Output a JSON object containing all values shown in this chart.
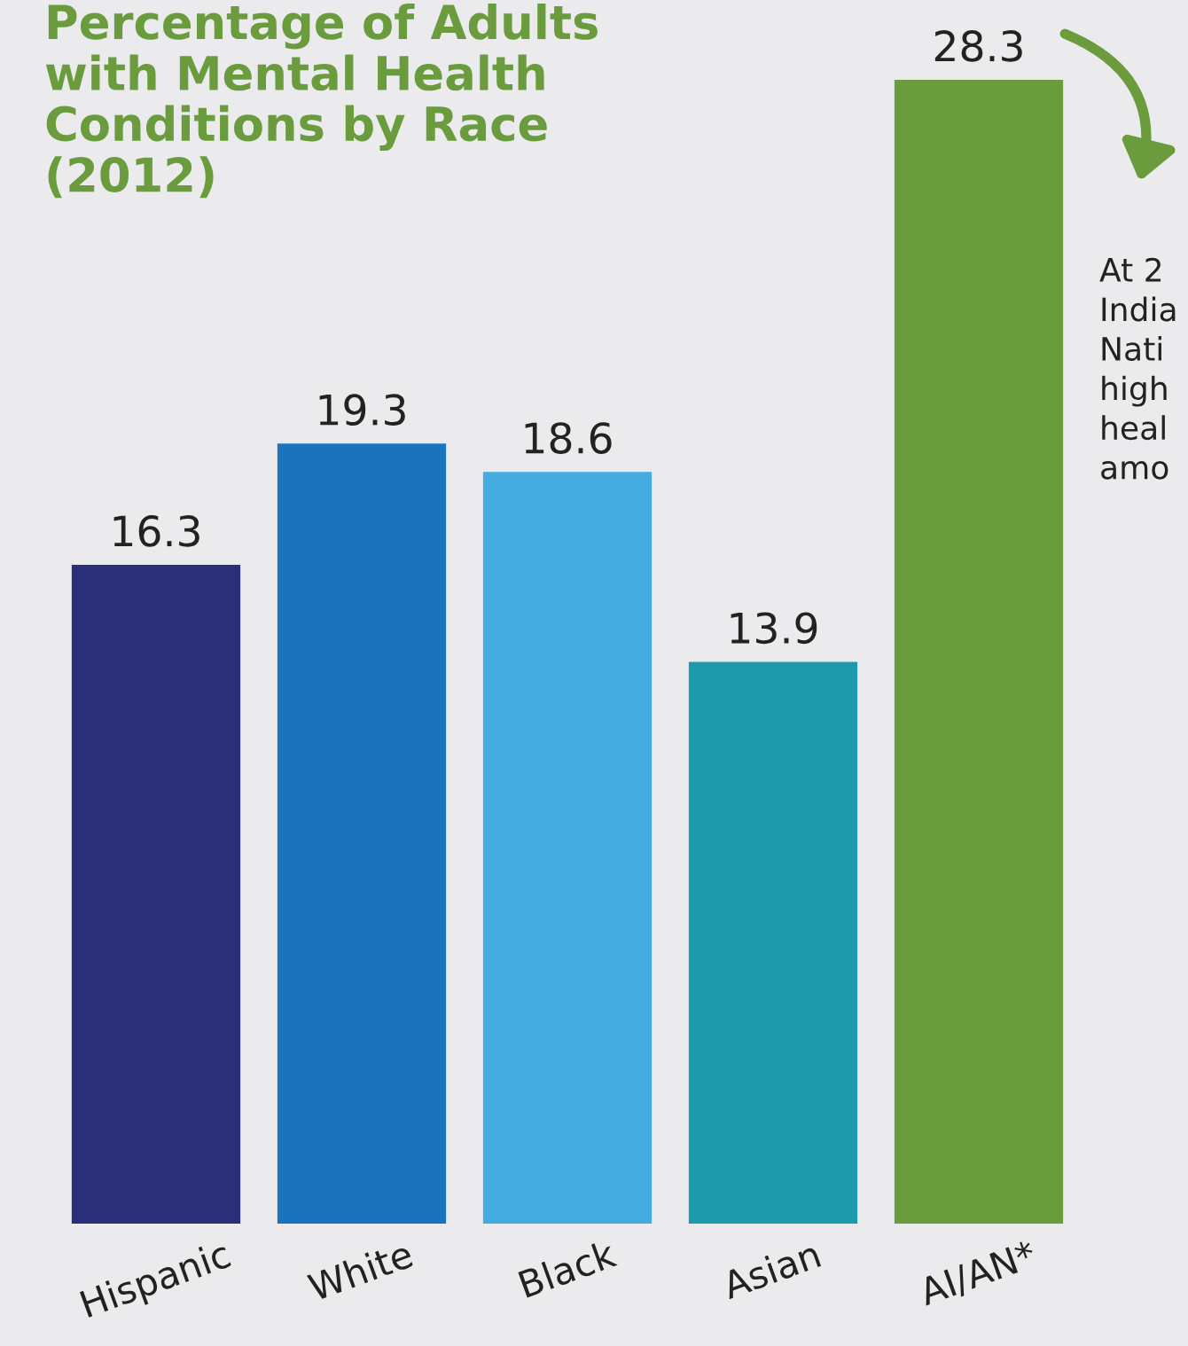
{
  "chart_data": {
    "type": "bar",
    "title": "Percentage of Adults\nwith Mental Health\nConditions by Race\n(2012)",
    "categories": [
      "Hispanic",
      "White",
      "Black",
      "Asian",
      "AI/AN*"
    ],
    "values": [
      16.3,
      19.3,
      18.6,
      13.9,
      28.3
    ],
    "colors": [
      "#2b2f78",
      "#1a73bb",
      "#43abe0",
      "#1c9aab",
      "#6a9c3e"
    ],
    "data_labels": true,
    "grid": false,
    "legend": false,
    "tick_labels": "x",
    "annotations": [
      "At 2\nIndia\nNati\nhigh\nheal\namo"
    ]
  }
}
